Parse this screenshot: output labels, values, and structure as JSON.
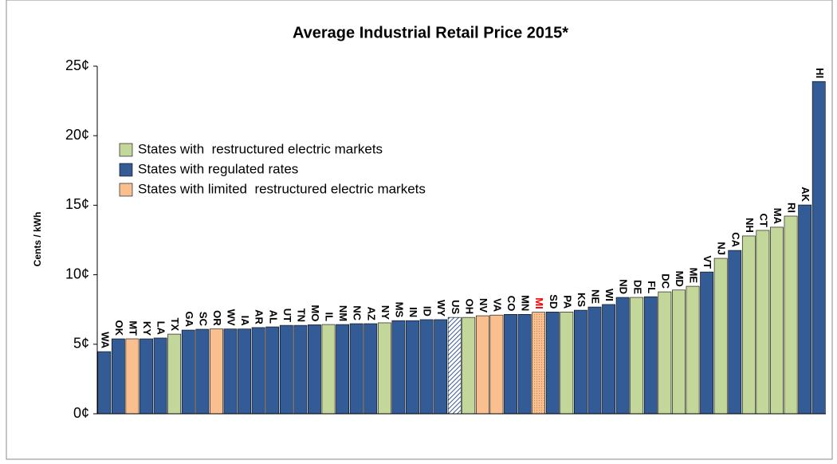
{
  "chart_data": {
    "type": "bar",
    "title": "Average Industrial Retail Price 2015*",
    "y_label": "Cents / kWh",
    "categories": [
      "WA",
      "OK",
      "MT",
      "KY",
      "LA",
      "TX",
      "GA",
      "SC",
      "OR",
      "WV",
      "IA",
      "AR",
      "AL",
      "UT",
      "TN",
      "MO",
      "IL",
      "NM",
      "NC",
      "AZ",
      "NY",
      "MS",
      "IN",
      "ID",
      "WY",
      "US",
      "OH",
      "NV",
      "VA",
      "CO",
      "MN",
      "MI",
      "SD",
      "PA",
      "KS",
      "NE",
      "WI",
      "ND",
      "DE",
      "FL",
      "DC",
      "MD",
      "ME",
      "VT",
      "NJ",
      "CA",
      "NH",
      "CT",
      "MA",
      "RI",
      "AK",
      "HI"
    ],
    "values": [
      4.47,
      5.39,
      5.39,
      5.39,
      5.45,
      5.73,
      6.02,
      6.08,
      6.1,
      6.1,
      6.1,
      6.2,
      6.25,
      6.36,
      6.36,
      6.4,
      6.42,
      6.42,
      6.48,
      6.48,
      6.54,
      6.7,
      6.7,
      6.77,
      6.77,
      6.93,
      6.93,
      7.05,
      7.1,
      7.15,
      7.15,
      7.3,
      7.32,
      7.32,
      7.45,
      7.68,
      7.86,
      8.37,
      8.37,
      8.42,
      8.77,
      8.9,
      9.17,
      10.2,
      11.18,
      11.75,
      12.79,
      13.19,
      13.42,
      14.22,
      15.02,
      23.9
    ],
    "bar_colors": [
      "#335b96",
      "#335b96",
      "#fabf8f",
      "#335b96",
      "#335b96",
      "#c4d79b",
      "#335b96",
      "#335b96",
      "#fabf8f",
      "#335b96",
      "#335b96",
      "#335b96",
      "#335b96",
      "#335b96",
      "#335b96",
      "#335b96",
      "#c4d79b",
      "#335b96",
      "#335b96",
      "#335b96",
      "#c4d79b",
      "#335b96",
      "#335b96",
      "#335b96",
      "#335b96",
      "#335b96",
      "#c4d79b",
      "#fabf8f",
      "#fabf8f",
      "#335b96",
      "#335b96",
      "#fabf8f",
      "#335b96",
      "#c4d79b",
      "#335b96",
      "#335b96",
      "#335b96",
      "#335b96",
      "#c4d79b",
      "#335b96",
      "#c4d79b",
      "#c4d79b",
      "#c4d79b",
      "#335b96",
      "#c4d79b",
      "#335b96",
      "#c4d79b",
      "#c4d79b",
      "#c4d79b",
      "#c4d79b",
      "#335b96",
      "#335b96"
    ],
    "hatched": [
      "US"
    ],
    "dotted": [
      "MI"
    ],
    "label_colors": {
      "MI": "#ff0000"
    },
    "legend": [
      {
        "name": "States with  restructured electric markets",
        "color": "#c4d79b"
      },
      {
        "name": "States with regulated rates",
        "color": "#335b96"
      },
      {
        "name": "States with limited  restructured electric markets",
        "color": "#fabf8f"
      }
    ],
    "ylim": [
      0,
      25
    ],
    "yticks": [
      {
        "value": 0,
        "label": "0¢"
      },
      {
        "value": 5,
        "label": "5¢"
      },
      {
        "value": 10,
        "label": "10¢"
      },
      {
        "value": 15,
        "label": "15¢"
      },
      {
        "value": 20,
        "label": "20¢"
      },
      {
        "value": 25,
        "label": "25¢"
      }
    ]
  }
}
